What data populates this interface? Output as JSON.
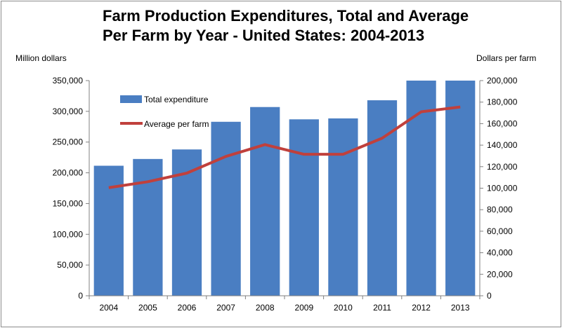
{
  "chart_data": {
    "type": "bar",
    "title_lines": [
      "Farm Production Expenditures, Total and Average",
      "Per Farm by Year - United States: 2004-2013"
    ],
    "ylabel_left": "Million dollars",
    "ylabel_right": "Dollars per farm",
    "categories": [
      "2004",
      "2005",
      "2006",
      "2007",
      "2008",
      "2009",
      "2010",
      "2011",
      "2012",
      "2013"
    ],
    "ylim_left": [
      0,
      350000
    ],
    "ylim_right": [
      0,
      200000
    ],
    "yticks_left": [
      "0",
      "50,000",
      "100,000",
      "150,000",
      "200,000",
      "250,000",
      "300,000",
      "350,000"
    ],
    "yticks_right": [
      "0",
      "20,000",
      "40,000",
      "60,000",
      "80,000",
      "100,000",
      "120,000",
      "140,000",
      "160,000",
      "180,000",
      "200,000"
    ],
    "series": [
      {
        "name": "Total expenditure",
        "type": "bar",
        "axis": "left",
        "color": "#4a7ec2",
        "values": [
          211500,
          222500,
          238000,
          283000,
          307000,
          287000,
          288500,
          318000,
          350000,
          350000
        ]
      },
      {
        "name": "Average per farm",
        "type": "line",
        "axis": "right",
        "color": "#c0403c",
        "values": [
          100500,
          106000,
          114000,
          129500,
          140500,
          131500,
          131500,
          146500,
          171000,
          175500
        ]
      }
    ],
    "legend_position": "top-left",
    "grid": false
  }
}
